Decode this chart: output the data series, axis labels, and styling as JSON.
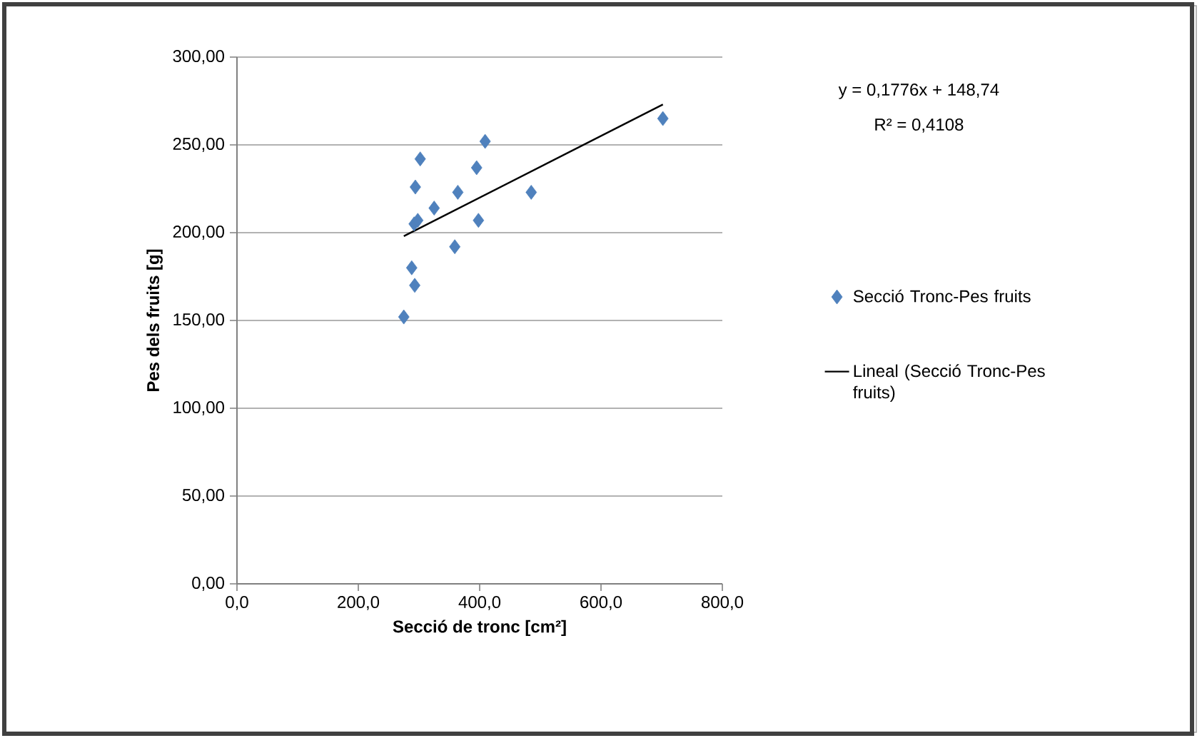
{
  "chart_data": {
    "type": "scatter",
    "xlabel": "Secció de tronc [cm²]",
    "ylabel": "Pes dels fruits [g]",
    "annotations": [
      "y = 0,1776x + 148,74",
      "R² = 0,4108"
    ],
    "series": [
      {
        "name": "Secció Tronc-Pes fruits",
        "color": "#4f81bd",
        "x": [
          302,
          409,
          294,
          395,
          364,
          485,
          325,
          292,
          298,
          398,
          359,
          288,
          293,
          275,
          702
        ],
        "values": [
          242,
          252,
          226,
          237,
          223,
          223,
          214,
          205,
          207,
          207,
          192,
          180,
          170,
          152,
          265
        ]
      },
      {
        "name": "Lineal (Secció Tronc-Pes fruits)",
        "type": "line",
        "color": "#000000",
        "marker": "none",
        "x": [
          275,
          702
        ],
        "values": [
          198,
          273
        ]
      }
    ],
    "xlim": [
      0,
      800
    ],
    "ylim": [
      0,
      300
    ],
    "xticks": [
      {
        "value": 0,
        "label": "0,0"
      },
      {
        "value": 200,
        "label": "200,0"
      },
      {
        "value": 400,
        "label": "400,0"
      },
      {
        "value": 600,
        "label": "600,0"
      },
      {
        "value": 800,
        "label": "800,0"
      }
    ],
    "yticks": [
      {
        "value": 0,
        "label": "0,00"
      },
      {
        "value": 50,
        "label": "50,00"
      },
      {
        "value": 100,
        "label": "100,00"
      },
      {
        "value": 150,
        "label": "150,00"
      },
      {
        "value": 200,
        "label": "200,00"
      },
      {
        "value": 250,
        "label": "250,00"
      },
      {
        "value": 300,
        "label": "300,00"
      }
    ],
    "grid": "y",
    "legend": "right",
    "marker": "diamond",
    "line_style": "solid"
  }
}
